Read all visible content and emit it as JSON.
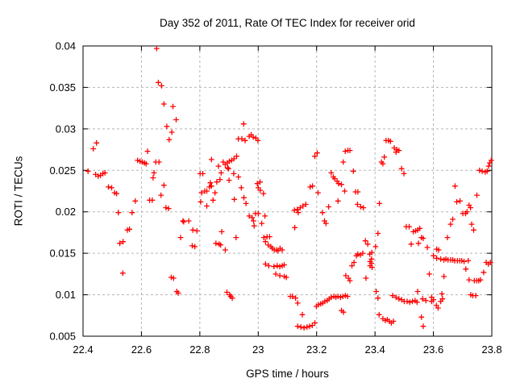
{
  "figure": {
    "background": "#ffffff"
  },
  "chart_data": {
    "type": "scatter",
    "title": "Day 352 of 2011, Rate Of TEC Index for receiver orid",
    "xlabel": "GPS time / hours",
    "ylabel": "ROTI / TECUs",
    "xlim": [
      22.4,
      23.8
    ],
    "ylim": [
      0.005,
      0.04
    ],
    "xtick_values": [
      22.4,
      22.6,
      22.8,
      23.0,
      23.2,
      23.4,
      23.6,
      23.8
    ],
    "xtick_labels": [
      "22.4",
      "22.6",
      "22.8",
      "23",
      "23.2",
      "23.4",
      "23.6",
      "23.8"
    ],
    "ytick_values": [
      0.005,
      0.01,
      0.015,
      0.02,
      0.025,
      0.03,
      0.035,
      0.04
    ],
    "ytick_labels": [
      "0.005",
      "0.01",
      "0.015",
      "0.02",
      "0.025",
      "0.03",
      "0.035",
      "0.04"
    ],
    "grid": true,
    "legend": "none",
    "marker": "plus",
    "marker_color": "#ff0000",
    "frame_color": "#000000",
    "grid_color": "#b5b5b5",
    "text_color": "#000000",
    "points": [
      [
        22.652,
        0.0397
      ],
      [
        22.658,
        0.0356
      ],
      [
        22.669,
        0.0352
      ],
      [
        22.677,
        0.033
      ],
      [
        22.708,
        0.0327
      ],
      [
        22.719,
        0.0311
      ],
      [
        22.687,
        0.0303
      ],
      [
        22.704,
        0.0296
      ],
      [
        22.695,
        0.0287
      ],
      [
        22.446,
        0.0283
      ],
      [
        22.435,
        0.0276
      ],
      [
        22.621,
        0.0273
      ],
      [
        22.587,
        0.0262
      ],
      [
        22.595,
        0.0261
      ],
      [
        22.603,
        0.026
      ],
      [
        22.61,
        0.0259
      ],
      [
        22.616,
        0.0258
      ],
      [
        22.649,
        0.026
      ],
      [
        22.66,
        0.026
      ],
      [
        22.417,
        0.0249
      ],
      [
        22.443,
        0.0245
      ],
      [
        22.452,
        0.0243
      ],
      [
        22.46,
        0.0244
      ],
      [
        22.468,
        0.0246
      ],
      [
        22.475,
        0.0247
      ],
      [
        22.643,
        0.0247
      ],
      [
        22.64,
        0.0241
      ],
      [
        22.487,
        0.023
      ],
      [
        22.498,
        0.0229
      ],
      [
        22.508,
        0.0223
      ],
      [
        22.515,
        0.0222
      ],
      [
        22.677,
        0.0232
      ],
      [
        22.667,
        0.022
      ],
      [
        22.579,
        0.0213
      ],
      [
        22.628,
        0.0214
      ],
      [
        22.637,
        0.0214
      ],
      [
        22.684,
        0.0205
      ],
      [
        22.693,
        0.0204
      ],
      [
        22.521,
        0.0199
      ],
      [
        22.568,
        0.0199
      ],
      [
        22.552,
        0.0178
      ],
      [
        22.559,
        0.0179
      ],
      [
        22.526,
        0.0162
      ],
      [
        22.537,
        0.0164
      ],
      [
        22.536,
        0.0126
      ],
      [
        22.702,
        0.0121
      ],
      [
        22.71,
        0.012
      ],
      [
        22.721,
        0.0104
      ],
      [
        22.726,
        0.0102
      ],
      [
        22.742,
        0.0189
      ],
      [
        22.734,
        0.0169
      ],
      [
        22.745,
        0.0188
      ],
      [
        22.95,
        0.0306
      ],
      [
        22.932,
        0.0288
      ],
      [
        22.944,
        0.0288
      ],
      [
        22.955,
        0.0286
      ],
      [
        22.969,
        0.0291
      ],
      [
        22.976,
        0.0293
      ],
      [
        22.983,
        0.029
      ],
      [
        22.992,
        0.0289
      ],
      [
        22.999,
        0.0286
      ],
      [
        22.84,
        0.0263
      ],
      [
        22.88,
        0.026
      ],
      [
        22.887,
        0.0257
      ],
      [
        22.894,
        0.0259
      ],
      [
        22.901,
        0.0261
      ],
      [
        22.909,
        0.0262
      ],
      [
        22.917,
        0.0264
      ],
      [
        22.926,
        0.0267
      ],
      [
        22.898,
        0.0252
      ],
      [
        22.81,
        0.0246
      ],
      [
        22.801,
        0.0246
      ],
      [
        22.864,
        0.0255
      ],
      [
        22.895,
        0.0253
      ],
      [
        22.873,
        0.0247
      ],
      [
        22.869,
        0.0239
      ],
      [
        22.858,
        0.0236
      ],
      [
        22.836,
        0.0235
      ],
      [
        22.9,
        0.0238
      ],
      [
        22.916,
        0.0246
      ],
      [
        22.932,
        0.0242
      ],
      [
        22.942,
        0.0229
      ],
      [
        22.833,
        0.023
      ],
      [
        22.84,
        0.0231
      ],
      [
        22.824,
        0.0225
      ],
      [
        22.806,
        0.0223
      ],
      [
        22.997,
        0.0234
      ],
      [
        23.006,
        0.0236
      ],
      [
        23.0,
        0.0229
      ],
      [
        23.007,
        0.0226
      ],
      [
        23.018,
        0.0222
      ],
      [
        22.817,
        0.0225
      ],
      [
        22.852,
        0.0223
      ],
      [
        22.845,
        0.0214
      ],
      [
        22.803,
        0.0212
      ],
      [
        22.824,
        0.0207
      ],
      [
        22.918,
        0.0215
      ],
      [
        22.951,
        0.0217
      ],
      [
        22.958,
        0.021
      ],
      [
        22.969,
        0.0195
      ],
      [
        22.979,
        0.0193
      ],
      [
        22.991,
        0.0198
      ],
      [
        22.984,
        0.0189
      ],
      [
        23.0,
        0.0198
      ],
      [
        23.012,
        0.0186
      ],
      [
        23.023,
        0.0195
      ],
      [
        22.986,
        0.0183
      ],
      [
        22.762,
        0.0189
      ],
      [
        22.776,
        0.0178
      ],
      [
        22.79,
        0.0177
      ],
      [
        22.875,
        0.0176
      ],
      [
        22.924,
        0.0169
      ],
      [
        22.855,
        0.0162
      ],
      [
        22.866,
        0.0161
      ],
      [
        22.871,
        0.016
      ],
      [
        22.774,
        0.0159
      ],
      [
        22.783,
        0.0158
      ],
      [
        22.887,
        0.0154
      ],
      [
        23.019,
        0.0169
      ],
      [
        23.03,
        0.017
      ],
      [
        23.039,
        0.017
      ],
      [
        23.025,
        0.0164
      ],
      [
        23.034,
        0.016
      ],
      [
        23.043,
        0.0158
      ],
      [
        23.048,
        0.0156
      ],
      [
        23.055,
        0.0154
      ],
      [
        23.062,
        0.0154
      ],
      [
        23.068,
        0.0153
      ],
      [
        23.075,
        0.0156
      ],
      [
        23.082,
        0.0154
      ],
      [
        23.025,
        0.0137
      ],
      [
        23.036,
        0.0135
      ],
      [
        23.054,
        0.0134
      ],
      [
        23.065,
        0.0135
      ],
      [
        23.074,
        0.0134
      ],
      [
        23.082,
        0.0135
      ],
      [
        23.089,
        0.0136
      ],
      [
        23.06,
        0.0125
      ],
      [
        23.074,
        0.0123
      ],
      [
        23.089,
        0.0122
      ],
      [
        23.096,
        0.0121
      ],
      [
        22.893,
        0.0103
      ],
      [
        22.902,
        0.01
      ],
      [
        22.906,
        0.0098
      ],
      [
        22.911,
        0.0096
      ],
      [
        23.194,
        0.0267
      ],
      [
        23.202,
        0.0271
      ],
      [
        23.298,
        0.0273
      ],
      [
        23.307,
        0.0274
      ],
      [
        23.314,
        0.0274
      ],
      [
        23.291,
        0.026
      ],
      [
        23.326,
        0.0249
      ],
      [
        23.25,
        0.0247
      ],
      [
        23.257,
        0.0242
      ],
      [
        23.262,
        0.024
      ],
      [
        23.27,
        0.0237
      ],
      [
        23.275,
        0.0234
      ],
      [
        23.285,
        0.0233
      ],
      [
        23.296,
        0.0225
      ],
      [
        23.333,
        0.0224
      ],
      [
        23.341,
        0.0224
      ],
      [
        23.178,
        0.023
      ],
      [
        23.186,
        0.0231
      ],
      [
        23.205,
        0.0223
      ],
      [
        23.438,
        0.0286
      ],
      [
        23.446,
        0.0286
      ],
      [
        23.453,
        0.0285
      ],
      [
        23.432,
        0.0266
      ],
      [
        23.422,
        0.026
      ],
      [
        23.427,
        0.0258
      ],
      [
        23.466,
        0.0277
      ],
      [
        23.475,
        0.0275
      ],
      [
        23.482,
        0.0274
      ],
      [
        23.472,
        0.0272
      ],
      [
        23.491,
        0.0252
      ],
      [
        23.499,
        0.0246
      ],
      [
        23.674,
        0.0231
      ],
      [
        23.758,
        0.025
      ],
      [
        23.767,
        0.0249
      ],
      [
        23.777,
        0.0248
      ],
      [
        23.784,
        0.0249
      ],
      [
        23.789,
        0.0255
      ],
      [
        23.793,
        0.0259
      ],
      [
        23.798,
        0.0262
      ],
      [
        23.124,
        0.0202
      ],
      [
        23.134,
        0.0203
      ],
      [
        23.144,
        0.0205
      ],
      [
        23.153,
        0.0207
      ],
      [
        23.163,
        0.0209
      ],
      [
        23.137,
        0.0199
      ],
      [
        23.22,
        0.0199
      ],
      [
        23.241,
        0.0206
      ],
      [
        23.273,
        0.0213
      ],
      [
        23.227,
        0.0189
      ],
      [
        23.232,
        0.0186
      ],
      [
        23.125,
        0.0181
      ],
      [
        23.34,
        0.0209
      ],
      [
        23.351,
        0.0206
      ],
      [
        23.36,
        0.0205
      ],
      [
        23.415,
        0.021
      ],
      [
        23.41,
        0.0174
      ],
      [
        23.367,
        0.0165
      ],
      [
        23.375,
        0.0161
      ],
      [
        23.358,
        0.015
      ],
      [
        23.35,
        0.0148
      ],
      [
        23.341,
        0.0149
      ],
      [
        23.336,
        0.0147
      ],
      [
        23.328,
        0.0139
      ],
      [
        23.321,
        0.0135
      ],
      [
        23.402,
        0.0158
      ],
      [
        23.382,
        0.0149
      ],
      [
        23.389,
        0.0151
      ],
      [
        23.388,
        0.0143
      ],
      [
        23.383,
        0.014
      ],
      [
        23.388,
        0.0138
      ],
      [
        23.383,
        0.0135
      ],
      [
        23.39,
        0.0133
      ],
      [
        23.369,
        0.012
      ],
      [
        23.3,
        0.0123
      ],
      [
        23.309,
        0.012
      ],
      [
        23.314,
        0.0117
      ],
      [
        23.404,
        0.0104
      ],
      [
        23.41,
        0.0096
      ],
      [
        23.11,
        0.0098
      ],
      [
        23.117,
        0.0098
      ],
      [
        23.128,
        0.0096
      ],
      [
        23.135,
        0.009
      ],
      [
        23.151,
        0.0076
      ],
      [
        23.135,
        0.0062
      ],
      [
        23.146,
        0.0061
      ],
      [
        23.157,
        0.006
      ],
      [
        23.167,
        0.0061
      ],
      [
        23.176,
        0.0062
      ],
      [
        23.185,
        0.0063
      ],
      [
        23.194,
        0.0066
      ],
      [
        23.199,
        0.0086
      ],
      [
        23.206,
        0.0088
      ],
      [
        23.214,
        0.0089
      ],
      [
        23.221,
        0.009
      ],
      [
        23.228,
        0.0092
      ],
      [
        23.236,
        0.0093
      ],
      [
        23.243,
        0.0095
      ],
      [
        23.25,
        0.0097
      ],
      [
        23.259,
        0.0098
      ],
      [
        23.266,
        0.0097
      ],
      [
        23.273,
        0.0098
      ],
      [
        23.282,
        0.0097
      ],
      [
        23.29,
        0.0098
      ],
      [
        23.298,
        0.0099
      ],
      [
        23.306,
        0.0098
      ],
      [
        23.285,
        0.0081
      ],
      [
        23.292,
        0.0079
      ],
      [
        23.414,
        0.0076
      ],
      [
        23.427,
        0.0071
      ],
      [
        23.435,
        0.0069
      ],
      [
        23.442,
        0.007
      ],
      [
        23.449,
        0.0068
      ],
      [
        23.456,
        0.0066
      ],
      [
        23.463,
        0.0068
      ],
      [
        23.749,
        0.022
      ],
      [
        23.68,
        0.0212
      ],
      [
        23.691,
        0.0213
      ],
      [
        23.722,
        0.0208
      ],
      [
        23.727,
        0.0205
      ],
      [
        23.701,
        0.0198
      ],
      [
        23.71,
        0.0198
      ],
      [
        23.715,
        0.02
      ],
      [
        23.666,
        0.0191
      ],
      [
        23.659,
        0.0185
      ],
      [
        23.731,
        0.0185
      ],
      [
        23.738,
        0.0178
      ],
      [
        23.648,
        0.0169
      ],
      [
        23.507,
        0.0182
      ],
      [
        23.517,
        0.0182
      ],
      [
        23.531,
        0.0176
      ],
      [
        23.539,
        0.0177
      ],
      [
        23.546,
        0.0178
      ],
      [
        23.553,
        0.018
      ],
      [
        23.524,
        0.0161
      ],
      [
        23.549,
        0.0162
      ],
      [
        23.559,
        0.0169
      ],
      [
        23.565,
        0.0168
      ],
      [
        23.579,
        0.0157
      ],
      [
        23.611,
        0.0155
      ],
      [
        23.618,
        0.0154
      ],
      [
        23.6,
        0.0147
      ],
      [
        23.611,
        0.0144
      ],
      [
        23.625,
        0.0143
      ],
      [
        23.636,
        0.0142
      ],
      [
        23.643,
        0.0143
      ],
      [
        23.65,
        0.0142
      ],
      [
        23.659,
        0.0142
      ],
      [
        23.666,
        0.0142
      ],
      [
        23.673,
        0.0141
      ],
      [
        23.682,
        0.0141
      ],
      [
        23.69,
        0.0141
      ],
      [
        23.697,
        0.0141
      ],
      [
        23.705,
        0.014
      ],
      [
        23.719,
        0.0141
      ],
      [
        23.781,
        0.0139
      ],
      [
        23.788,
        0.0137
      ],
      [
        23.795,
        0.0139
      ],
      [
        23.711,
        0.0131
      ],
      [
        23.586,
        0.0125
      ],
      [
        23.636,
        0.0122
      ],
      [
        23.772,
        0.0127
      ],
      [
        23.722,
        0.0118
      ],
      [
        23.74,
        0.0117
      ],
      [
        23.748,
        0.0117
      ],
      [
        23.755,
        0.0117
      ],
      [
        23.761,
        0.0118
      ],
      [
        23.546,
        0.0104
      ],
      [
        23.46,
        0.0099
      ],
      [
        23.472,
        0.0097
      ],
      [
        23.482,
        0.0095
      ],
      [
        23.491,
        0.0094
      ],
      [
        23.5,
        0.0092
      ],
      [
        23.51,
        0.0092
      ],
      [
        23.519,
        0.0091
      ],
      [
        23.528,
        0.0092
      ],
      [
        23.537,
        0.0093
      ],
      [
        23.544,
        0.0091
      ],
      [
        23.563,
        0.0095
      ],
      [
        23.574,
        0.0093
      ],
      [
        23.594,
        0.0097
      ],
      [
        23.6,
        0.0094
      ],
      [
        23.594,
        0.0092
      ],
      [
        23.61,
        0.0087
      ],
      [
        23.616,
        0.0084
      ],
      [
        23.625,
        0.0092
      ],
      [
        23.631,
        0.0095
      ],
      [
        23.629,
        0.0101
      ],
      [
        23.728,
        0.01
      ],
      [
        23.735,
        0.0099
      ],
      [
        23.745,
        0.0099
      ],
      [
        23.559,
        0.0073
      ],
      [
        23.565,
        0.0062
      ]
    ]
  }
}
